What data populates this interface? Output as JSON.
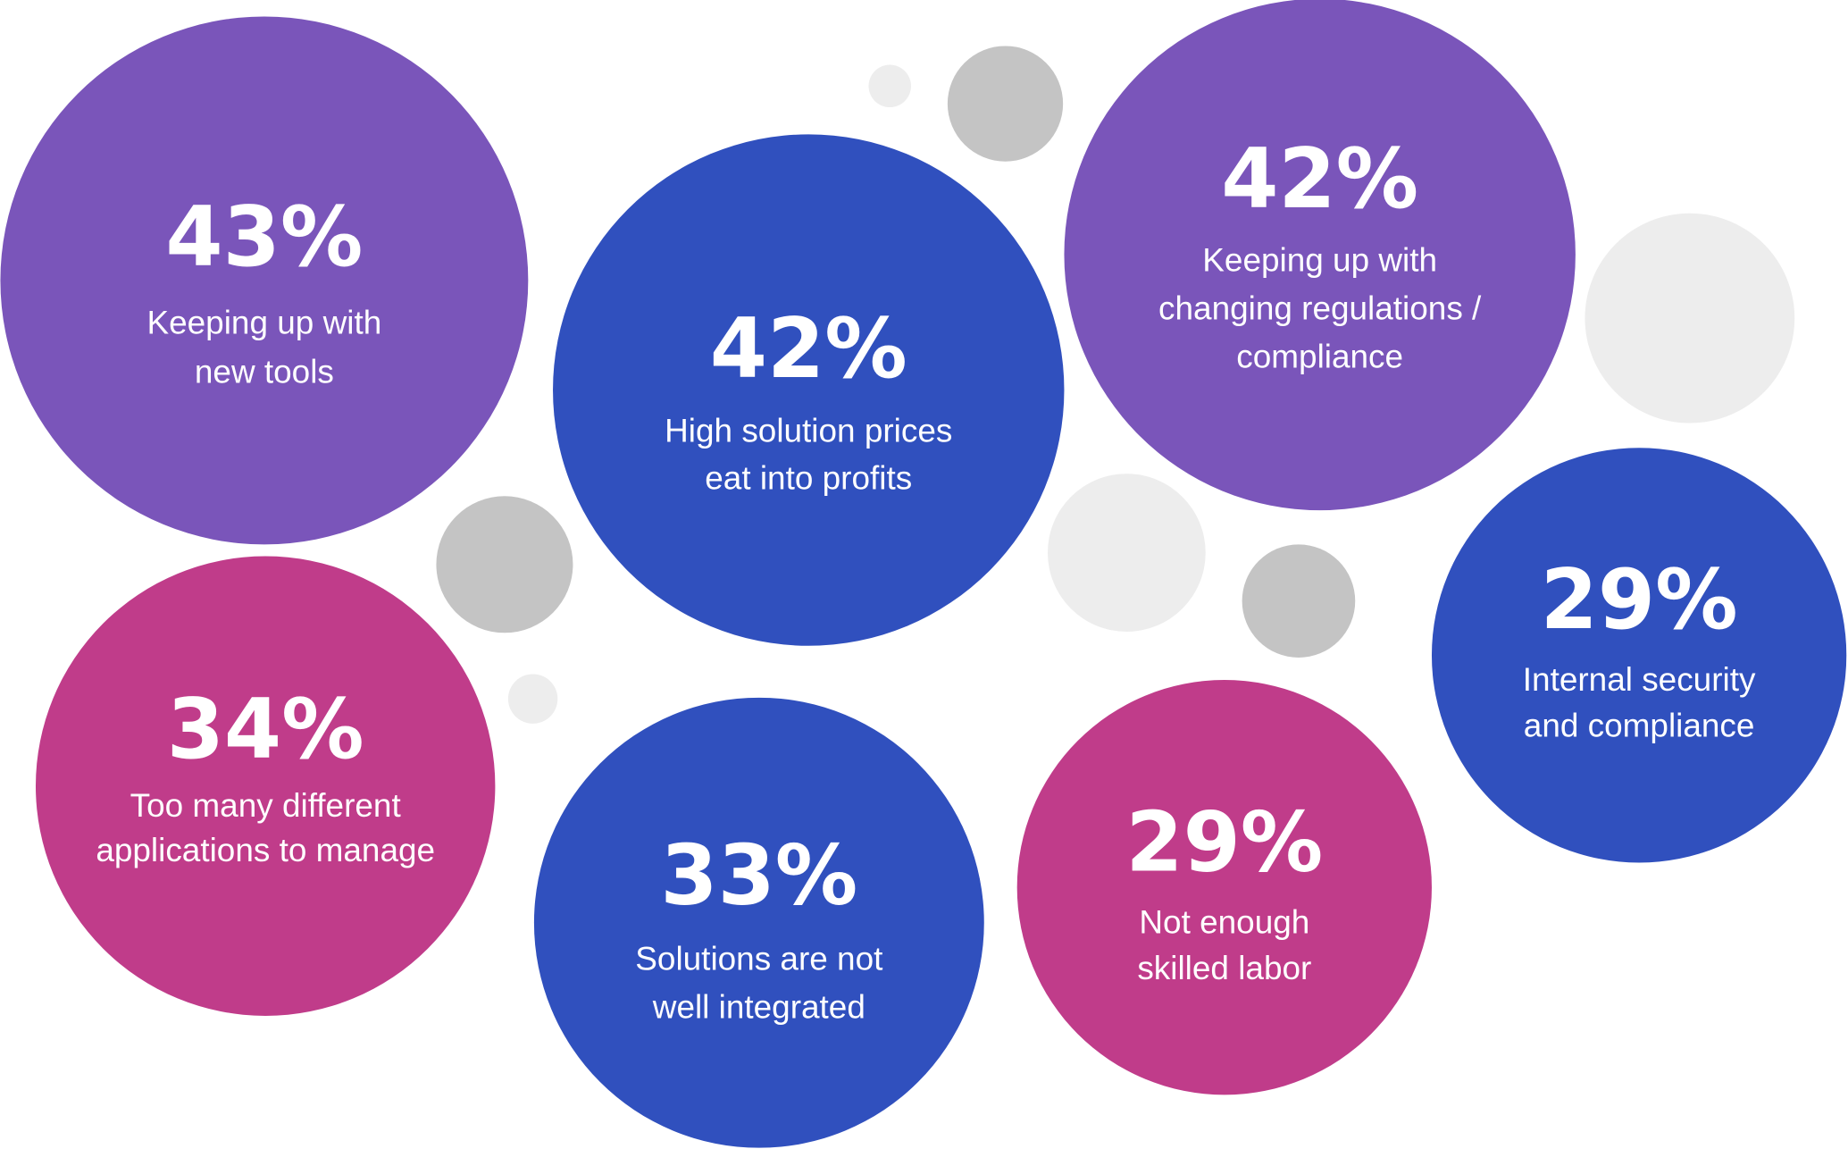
{
  "colors": {
    "purple": "#7A55BA",
    "blue": "#3050BE",
    "pink": "#C03C8A",
    "gray_dark": "#C4C4C4",
    "gray_light": "#EDEDED"
  },
  "chart_data": {
    "type": "bubble",
    "title": "",
    "items": [
      {
        "value": "43%",
        "label": [
          "Keeping up with",
          "new tools"
        ],
        "color": "purple"
      },
      {
        "value": "42%",
        "label": [
          "High solution prices",
          "eat into profits"
        ],
        "color": "blue"
      },
      {
        "value": "42%",
        "label": [
          "Keeping up with",
          "changing regulations /",
          "compliance"
        ],
        "color": "purple"
      },
      {
        "value": "29%",
        "label": [
          "Internal security",
          "and compliance"
        ],
        "color": "blue"
      },
      {
        "value": "34%",
        "label": [
          "Too many different",
          "applications to manage"
        ],
        "color": "pink"
      },
      {
        "value": "33%",
        "label": [
          "Solutions are not",
          "well integrated"
        ],
        "color": "blue"
      },
      {
        "value": "29%",
        "label": [
          "Not enough",
          "skilled labor"
        ],
        "color": "pink"
      }
    ]
  }
}
